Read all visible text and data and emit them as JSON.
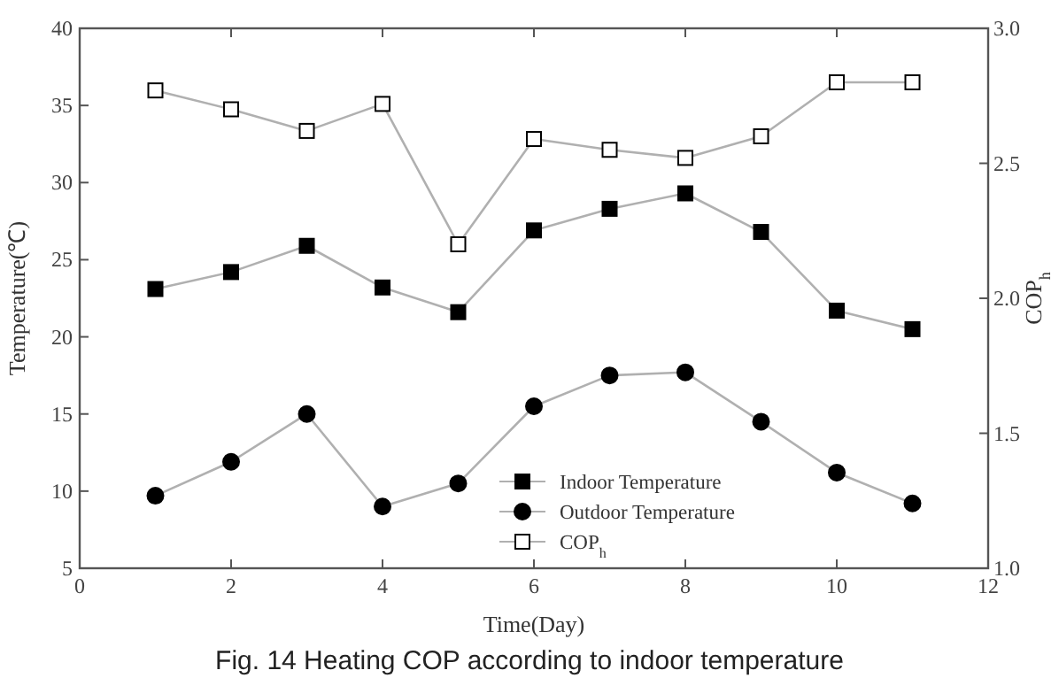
{
  "chart_data": {
    "type": "line",
    "xlabel": "Time(Day)",
    "ylabel": "Temperature(℃)",
    "y2label": "COP$_{h}$",
    "x": [
      1,
      2,
      3,
      4,
      5,
      6,
      7,
      8,
      9,
      10,
      11
    ],
    "xlim": [
      0,
      12
    ],
    "xticks": [
      0,
      2,
      4,
      6,
      8,
      10,
      12
    ],
    "ylim": [
      5,
      40
    ],
    "yticks": [
      5,
      10,
      15,
      20,
      25,
      30,
      35,
      40
    ],
    "y2lim": [
      1.0,
      3.0
    ],
    "y2ticks": [
      {
        "value": 1.0,
        "label": "1.0"
      },
      1.5,
      {
        "value": 2.0,
        "label": "2.0"
      },
      2.5,
      {
        "value": 3.0,
        "label": "3.0"
      }
    ],
    "legend": "bottom",
    "grid": false,
    "line_style": "solid",
    "series": [
      {
        "name": "Indoor Temperature",
        "color": "#000000",
        "marker": "square",
        "values": [
          23.1,
          24.2,
          25.9,
          23.2,
          21.6,
          26.9,
          28.3,
          29.3,
          26.8,
          21.7,
          20.5
        ]
      },
      {
        "name": "Outdoor Temperature",
        "color": "#000000",
        "marker": "circle",
        "values": [
          9.7,
          11.9,
          15.0,
          9.0,
          10.5,
          15.5,
          17.5,
          17.7,
          14.5,
          11.2,
          9.2
        ]
      },
      {
        "name": "COP$_{h}$",
        "color": "#ffffff",
        "marker": "square",
        "axis": "y2",
        "values": [
          2.77,
          2.7,
          2.62,
          2.72,
          2.2,
          2.59,
          2.55,
          2.52,
          2.6,
          2.8,
          2.8
        ]
      }
    ],
    "annotations": [
      "Fig. 14 Heating COP according to indoor temperature"
    ]
  }
}
